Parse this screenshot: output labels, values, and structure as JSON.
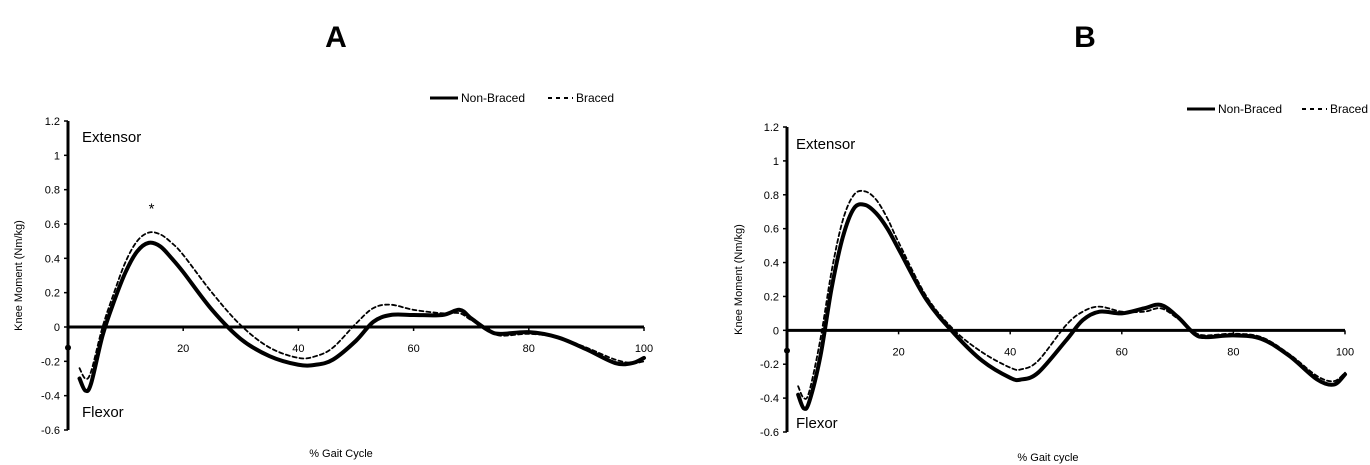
{
  "chart_data": [
    {
      "type": "line",
      "title": "A",
      "xlabel": "% Gait Cycle",
      "ylabel": "Knee Moment (Nm/kg)",
      "xlim": [
        0,
        100
      ],
      "ylim": [
        -0.6,
        1.2
      ],
      "x_ticks": [
        "20",
        "40",
        "60",
        "80",
        "100"
      ],
      "y_ticks": [
        "1.2",
        "1",
        "0.8",
        "0.6",
        "0.4",
        "0.2",
        "0",
        "-0.2",
        "-0.4",
        "-0.6"
      ],
      "region_labels": {
        "top": "Extensor",
        "bottom": "Flexor"
      },
      "annotation": {
        "text": "*",
        "x": 14.5,
        "y": 0.69
      },
      "legend_position": "top-right",
      "series": [
        {
          "name": "Non-Braced",
          "style": "solid",
          "x": [
            2,
            3,
            4,
            6,
            8,
            10,
            12,
            14,
            16,
            18,
            20,
            25,
            30,
            35,
            40,
            43,
            46,
            50,
            53,
            56,
            60,
            65,
            68,
            70,
            73,
            75,
            80,
            85,
            90,
            95,
            98,
            100
          ],
          "y": [
            -0.3,
            -0.37,
            -0.33,
            -0.05,
            0.15,
            0.32,
            0.44,
            0.49,
            0.47,
            0.4,
            0.32,
            0.1,
            -0.07,
            -0.17,
            -0.22,
            -0.22,
            -0.19,
            -0.08,
            0.03,
            0.07,
            0.07,
            0.07,
            0.1,
            0.05,
            -0.02,
            -0.04,
            -0.03,
            -0.06,
            -0.13,
            -0.21,
            -0.21,
            -0.18
          ]
        },
        {
          "name": "Braced",
          "style": "dashed",
          "x": [
            2,
            3,
            4,
            6,
            8,
            10,
            12,
            14,
            16,
            18,
            20,
            25,
            30,
            35,
            40,
            43,
            46,
            50,
            53,
            56,
            60,
            65,
            68,
            70,
            73,
            75,
            80,
            85,
            90,
            95,
            98,
            100
          ],
          "y": [
            -0.24,
            -0.3,
            -0.26,
            0.0,
            0.2,
            0.38,
            0.5,
            0.55,
            0.54,
            0.49,
            0.42,
            0.2,
            0.01,
            -0.12,
            -0.18,
            -0.17,
            -0.12,
            0.02,
            0.11,
            0.13,
            0.1,
            0.08,
            0.08,
            0.04,
            -0.01,
            -0.05,
            -0.04,
            -0.06,
            -0.12,
            -0.19,
            -0.21,
            -0.2
          ]
        }
      ]
    },
    {
      "type": "line",
      "title": "B",
      "xlabel": "% Gait cycle",
      "ylabel": "Knee Moment (Nm/kg)",
      "xlim": [
        0,
        100
      ],
      "ylim": [
        -0.6,
        1.2
      ],
      "x_ticks": [
        "20",
        "40",
        "60",
        "80",
        "100"
      ],
      "y_ticks": [
        "1.2",
        "1",
        "0.8",
        "0.6",
        "0.4",
        "0.2",
        "0",
        "-0.2",
        "-0.4",
        "-0.6"
      ],
      "region_labels": {
        "top": "Extensor",
        "bottom": "Flexor"
      },
      "legend_position": "top-right",
      "series": [
        {
          "name": "Non-Braced",
          "style": "solid",
          "x": [
            2,
            3,
            4,
            6,
            8,
            10,
            12,
            14,
            16,
            18,
            20,
            25,
            30,
            35,
            40,
            42,
            45,
            50,
            53,
            56,
            60,
            64,
            67,
            70,
            73,
            75,
            80,
            85,
            90,
            95,
            98,
            100
          ],
          "y": [
            -0.38,
            -0.46,
            -0.42,
            -0.15,
            0.25,
            0.55,
            0.72,
            0.74,
            0.69,
            0.6,
            0.48,
            0.18,
            -0.02,
            -0.18,
            -0.28,
            -0.29,
            -0.25,
            -0.06,
            0.06,
            0.11,
            0.1,
            0.13,
            0.15,
            0.08,
            -0.02,
            -0.04,
            -0.03,
            -0.05,
            -0.15,
            -0.29,
            -0.32,
            -0.26
          ]
        },
        {
          "name": "Braced",
          "style": "dashed",
          "x": [
            2,
            3,
            4,
            6,
            8,
            10,
            12,
            14,
            16,
            18,
            20,
            25,
            30,
            35,
            40,
            42,
            45,
            50,
            53,
            56,
            60,
            64,
            67,
            70,
            73,
            75,
            80,
            85,
            90,
            95,
            98,
            100
          ],
          "y": [
            -0.33,
            -0.4,
            -0.36,
            -0.05,
            0.35,
            0.65,
            0.8,
            0.82,
            0.77,
            0.66,
            0.52,
            0.2,
            0.0,
            -0.13,
            -0.22,
            -0.23,
            -0.18,
            0.03,
            0.11,
            0.14,
            0.11,
            0.11,
            0.13,
            0.07,
            -0.01,
            -0.03,
            -0.02,
            -0.04,
            -0.14,
            -0.27,
            -0.3,
            -0.25
          ]
        }
      ]
    }
  ]
}
